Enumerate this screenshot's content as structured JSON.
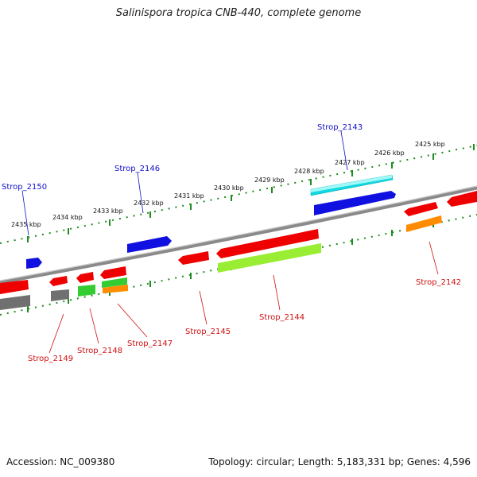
{
  "title": "Salinispora tropica CNB-440, complete genome",
  "footer": {
    "accession": "Accession: NC_009380",
    "summary": "Topology: circular; Length: 5,183,331 bp; Genes: 4,596"
  },
  "colors": {
    "backbone": "#8a8a8a",
    "ruler": "#1e8c1e",
    "label_top": "#1010c8",
    "label_bottom": "#d01010",
    "red": "#ee0000",
    "blue": "#1010e0",
    "cyan": "#10e0e0",
    "grey": "#707070",
    "green": "#33cc33",
    "lime": "#99ee33",
    "orange": "#ff8c00"
  },
  "scale_labels": [
    "2425 kbp",
    "2426 kbp",
    "2427 kbp",
    "2428 kbp",
    "2429 kbp",
    "2430 kbp",
    "2431 kbp",
    "2432 kbp",
    "2433 kbp",
    "2434 kbp",
    "2435 kbp"
  ],
  "gene_labels": {
    "top": [
      "Strop_2143",
      "Strop_2146",
      "Strop_2150"
    ],
    "bottom": [
      "Strop_2142",
      "Strop_2144",
      "Strop_2145",
      "Strop_2147",
      "Strop_2148",
      "Strop_2149"
    ]
  }
}
